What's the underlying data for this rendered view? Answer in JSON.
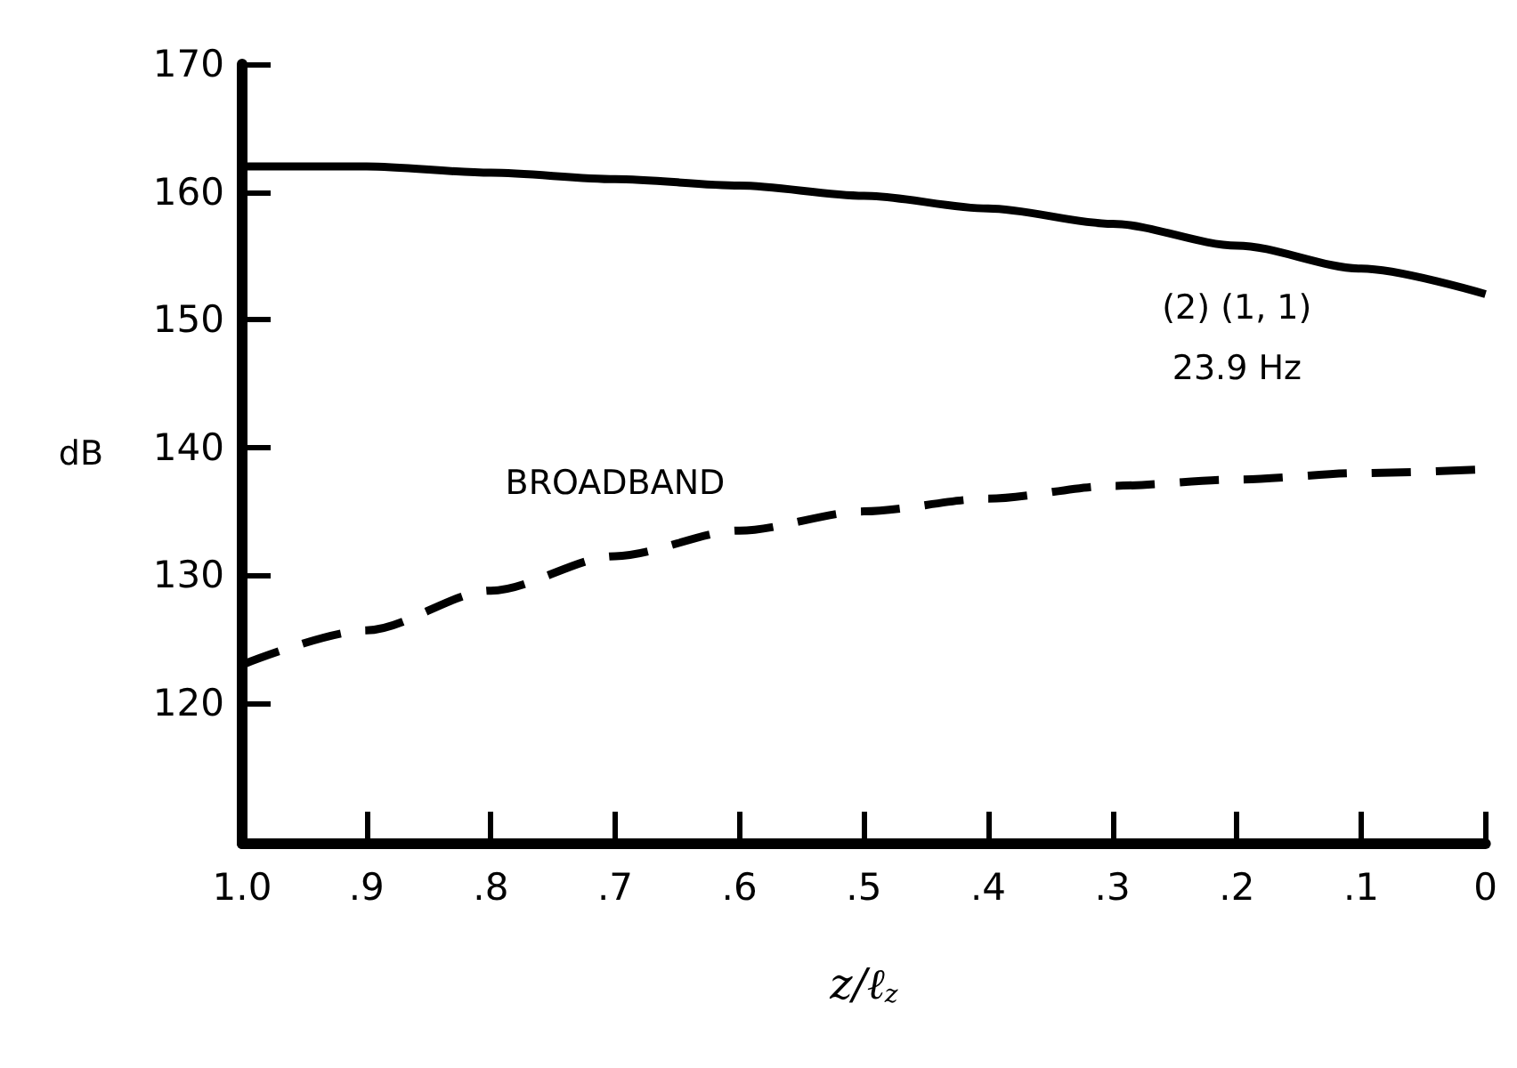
{
  "chart_data": {
    "type": "line",
    "xlabel": "z/ℓ$_{z}$",
    "ylabel": "dB",
    "x": [
      1.0,
      0.9,
      0.8,
      0.7,
      0.6,
      0.5,
      0.4,
      0.3,
      0.2,
      0.1,
      0
    ],
    "series": [
      {
        "name": "(2) (1, 1)\n23.9 Hz",
        "color": "#000000",
        "line_style": "solid",
        "values": [
          162,
          162,
          161.5,
          161,
          160.5,
          159.7,
          158.7,
          157.5,
          155.8,
          154,
          152
        ]
      },
      {
        "name": "BROADBAND",
        "color": "#000000",
        "line_style": "dashed",
        "values": [
          123,
          125.7,
          128.8,
          131.5,
          133.5,
          135,
          136,
          137,
          137.5,
          138,
          138.3
        ]
      }
    ],
    "xlim": [
      1,
      0
    ],
    "xticks": [
      {
        "value": 1,
        "label": "1.0"
      },
      {
        "value": 0.9,
        "label": ".9"
      },
      {
        "value": 0.8,
        "label": ".8"
      },
      {
        "value": 0.7,
        "label": ".7"
      },
      {
        "value": 0.6,
        "label": ".6"
      },
      {
        "value": 0.5,
        "label": ".5"
      },
      {
        "value": 0.4,
        "label": ".4"
      },
      {
        "value": 0.3,
        "label": ".3"
      },
      {
        "value": 0.2,
        "label": ".2"
      },
      {
        "value": 0.1,
        "label": ".1"
      },
      {
        "value": 0,
        "label": "0"
      }
    ],
    "ylim": [
      109,
      170
    ],
    "yticks": [
      120,
      130,
      140,
      150,
      160,
      170
    ],
    "grid": false,
    "legend": false,
    "marker": "none"
  }
}
